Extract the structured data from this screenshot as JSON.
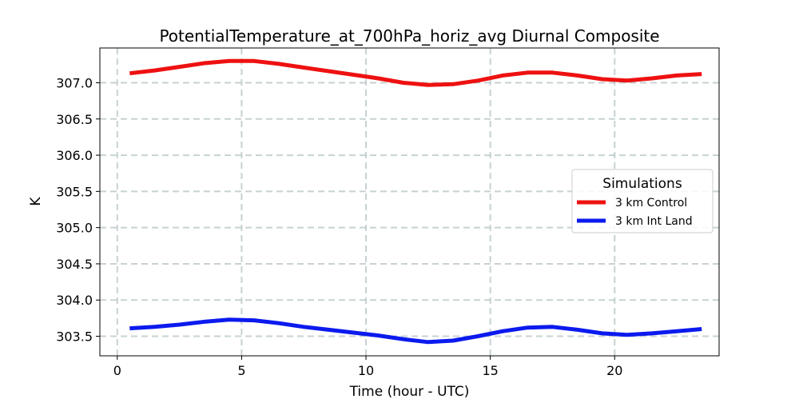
{
  "chart_data": {
    "type": "line",
    "title": "PotentialTemperature_at_700hPa_horiz_avg Diurnal Composite",
    "xlabel": "Time (hour - UTC)",
    "ylabel": "K",
    "xlim": [
      -0.7,
      24.2
    ],
    "ylim": [
      303.23,
      307.48
    ],
    "xticks": [
      0,
      5,
      10,
      15,
      20
    ],
    "yticks": [
      303.5,
      304.0,
      304.5,
      305.0,
      305.5,
      306.0,
      306.5,
      307.0
    ],
    "ytick_labels": [
      "303.5",
      "304.0",
      "304.5",
      "305.0",
      "305.5",
      "306.0",
      "306.5",
      "307.0"
    ],
    "grid": true,
    "legend": {
      "title": "Simulations",
      "placement": "center-right"
    },
    "x": [
      0.5,
      1.5,
      2.5,
      3.5,
      4.5,
      5.5,
      6.5,
      7.5,
      8.5,
      9.5,
      10.5,
      11.5,
      12.5,
      13.5,
      14.5,
      15.5,
      16.5,
      17.5,
      18.5,
      19.5,
      20.5,
      21.5,
      22.5,
      23.5
    ],
    "series": [
      {
        "name": "3 km Control",
        "color": "#ee1111",
        "values": [
          307.13,
          307.17,
          307.22,
          307.27,
          307.3,
          307.3,
          307.26,
          307.21,
          307.16,
          307.11,
          307.06,
          307.0,
          306.97,
          306.98,
          307.03,
          307.1,
          307.14,
          307.14,
          307.1,
          307.05,
          307.03,
          307.06,
          307.1,
          307.12
        ]
      },
      {
        "name": "3 km Int Land",
        "color": "#0b1aee",
        "values": [
          303.61,
          303.63,
          303.66,
          303.7,
          303.73,
          303.72,
          303.68,
          303.63,
          303.59,
          303.55,
          303.51,
          303.46,
          303.42,
          303.44,
          303.5,
          303.57,
          303.62,
          303.63,
          303.59,
          303.54,
          303.52,
          303.54,
          303.57,
          303.6
        ]
      }
    ]
  }
}
